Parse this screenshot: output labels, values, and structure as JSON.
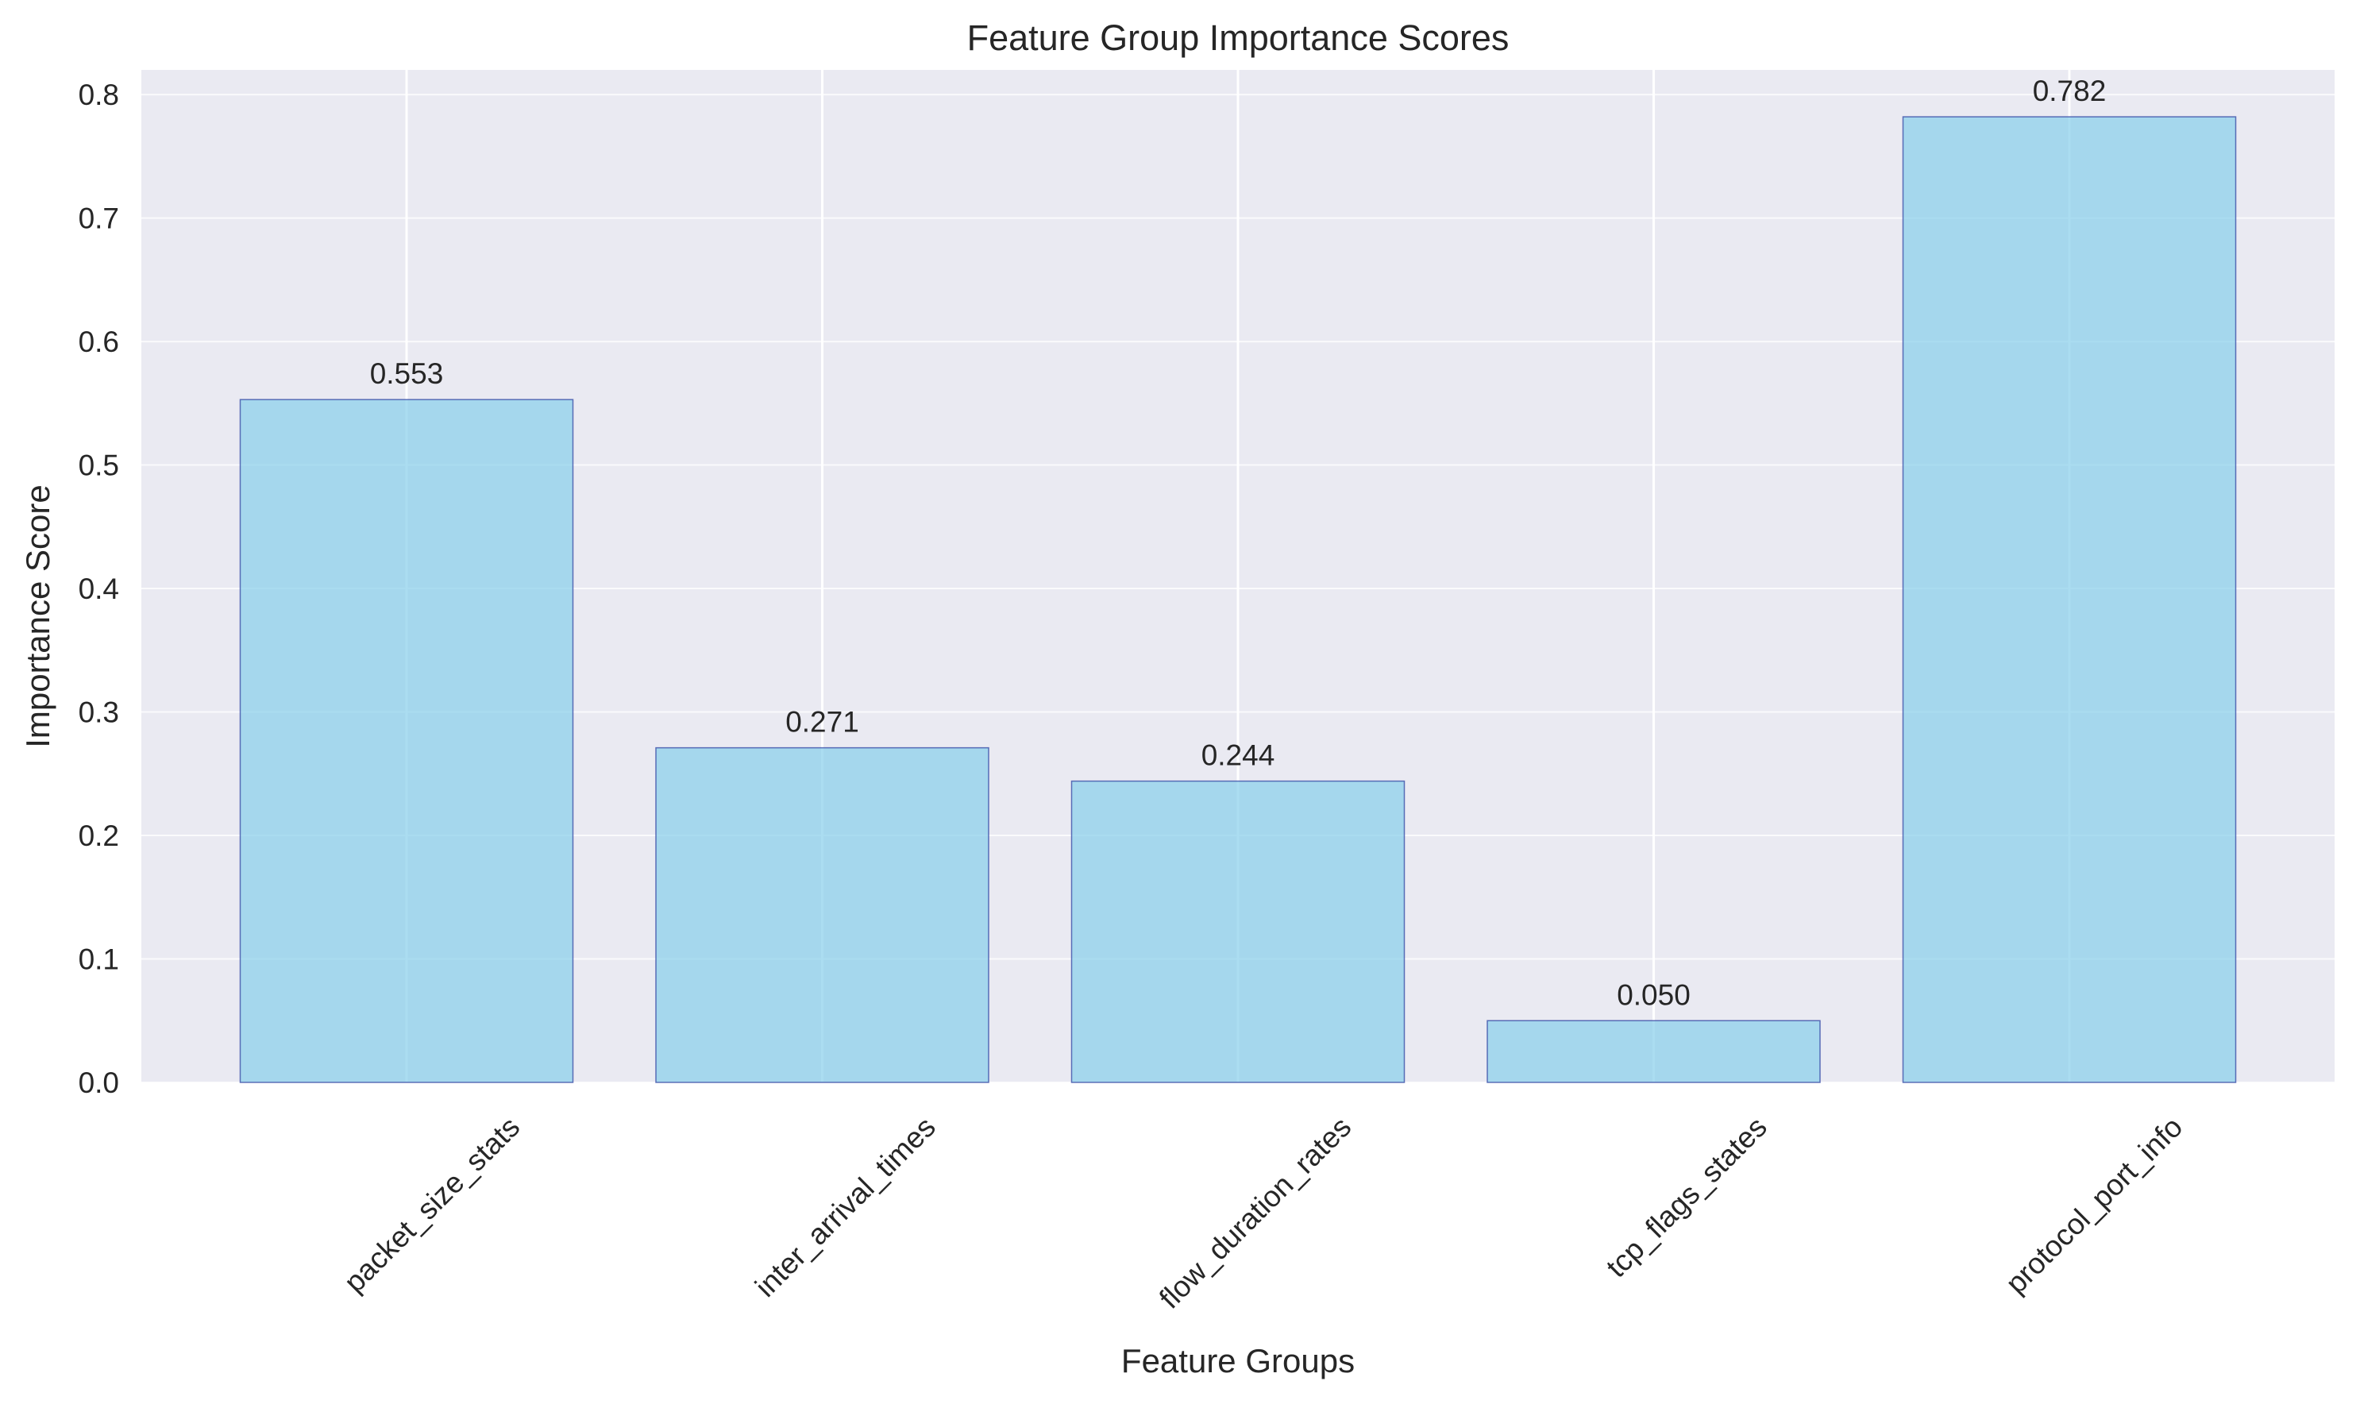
{
  "chart_data": {
    "type": "bar",
    "title": "Feature Group Importance Scores",
    "xlabel": "Feature Groups",
    "ylabel": "Importance Score",
    "categories": [
      "packet_size_stats",
      "inter_arrival_times",
      "flow_duration_rates",
      "tcp_flags_states",
      "protocol_port_info"
    ],
    "values": [
      0.553,
      0.271,
      0.244,
      0.05,
      0.782
    ],
    "value_labels": [
      "0.553",
      "0.271",
      "0.244",
      "0.050",
      "0.782"
    ],
    "ylim": [
      0,
      0.82
    ],
    "yticks": [
      0.0,
      0.1,
      0.2,
      0.3,
      0.4,
      0.5,
      0.6,
      0.7,
      0.8
    ],
    "ytick_labels": [
      "0.0",
      "0.1",
      "0.2",
      "0.3",
      "0.4",
      "0.5",
      "0.6",
      "0.7",
      "0.8"
    ],
    "grid": true,
    "x_tick_rotation": "45 degrees",
    "colors": {
      "bar_fill": "#87ceeb",
      "bar_edge": "#3b4fa8",
      "plot_background": "#eaeaf2",
      "grid": "#ffffff"
    }
  }
}
